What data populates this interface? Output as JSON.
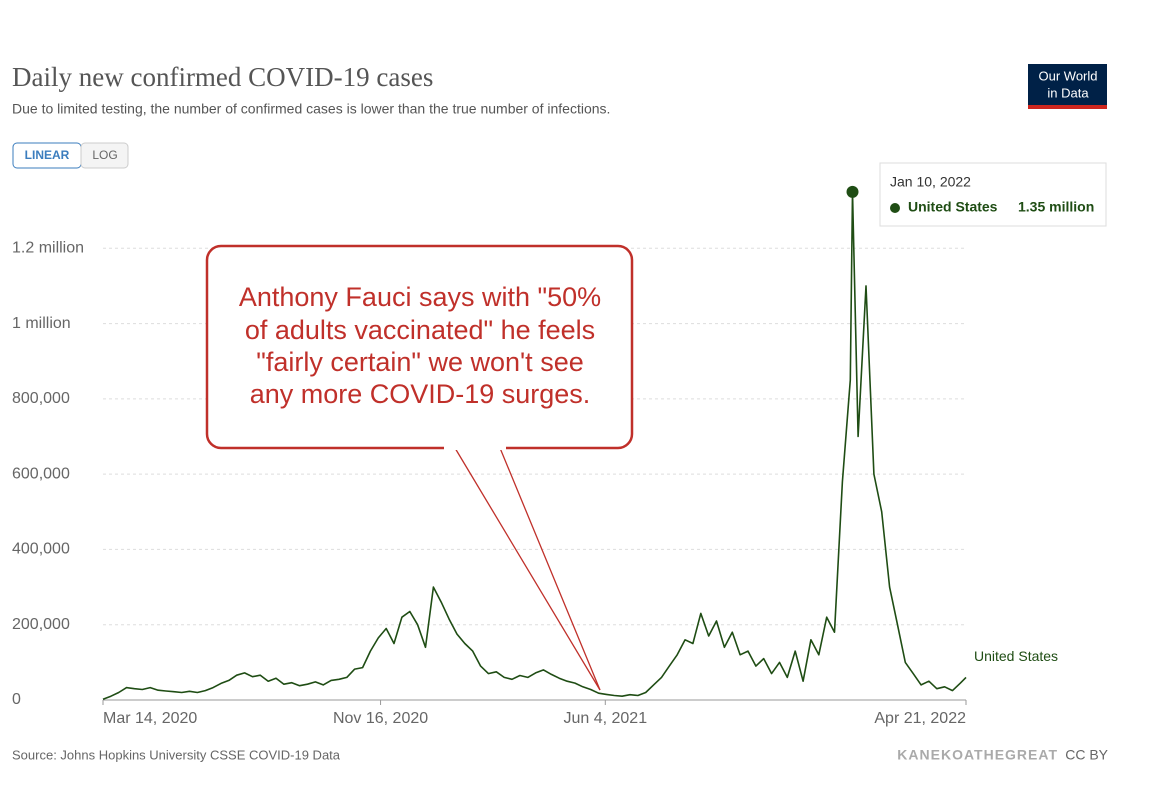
{
  "chart_data": {
    "type": "line",
    "title": "Daily new confirmed COVID-19 cases",
    "subtitle": "Due to limited testing, the number of confirmed cases is lower than the true number of infections.",
    "scale_buttons": [
      "LINEAR",
      "LOG"
    ],
    "log_scale": false,
    "logo": [
      "Our World",
      "in Data"
    ],
    "source": "Source: Johns Hopkins University CSSE COVID-19 Data",
    "watermark": "KANEKOATHEGREAT",
    "license": "CC BY",
    "annotation": [
      "Anthony Fauci says with \"50%",
      "of adults vaccinated\" he feels",
      "\"fairly certain\" we won't see",
      "any more COVID-19 surges."
    ],
    "tooltip": {
      "date": "Jan 10, 2022",
      "series": "United States",
      "value": 1350000,
      "value_label": "1.35 million"
    },
    "grid": true,
    "xlim": [
      "2020-03-14",
      "2022-04-21"
    ],
    "xticks": [
      {
        "value": "2020-03-14",
        "label": "Mar 14, 2020"
      },
      {
        "value": "2020-11-16",
        "label": "Nov 16, 2020"
      },
      {
        "value": "2021-06-04",
        "label": "Jun 4, 2021"
      },
      {
        "value": "2022-04-21",
        "label": "Apr 21, 2022"
      }
    ],
    "ylim": [
      0,
      1400000
    ],
    "yticks": [
      0,
      {
        "value": 200000,
        "label": "200,000"
      },
      {
        "value": 400000,
        "label": "400,000"
      },
      {
        "value": 600000,
        "label": "600,000"
      },
      {
        "value": 800000,
        "label": "800,000"
      },
      {
        "value": 1000000,
        "label": "1 million"
      },
      {
        "value": 1200000,
        "label": "1.2 million"
      }
    ],
    "x": [
      "2020-03-14",
      "2020-03-21",
      "2020-03-28",
      "2020-04-04",
      "2020-04-11",
      "2020-04-18",
      "2020-04-25",
      "2020-05-02",
      "2020-05-09",
      "2020-05-16",
      "2020-05-23",
      "2020-05-30",
      "2020-06-06",
      "2020-06-13",
      "2020-06-20",
      "2020-06-27",
      "2020-07-04",
      "2020-07-11",
      "2020-07-18",
      "2020-07-25",
      "2020-08-01",
      "2020-08-08",
      "2020-08-15",
      "2020-08-22",
      "2020-08-29",
      "2020-09-05",
      "2020-09-12",
      "2020-09-19",
      "2020-09-26",
      "2020-10-03",
      "2020-10-10",
      "2020-10-17",
      "2020-10-24",
      "2020-10-31",
      "2020-11-07",
      "2020-11-14",
      "2020-11-21",
      "2020-11-28",
      "2020-12-05",
      "2020-12-12",
      "2020-12-19",
      "2020-12-26",
      "2021-01-02",
      "2021-01-09",
      "2021-01-16",
      "2021-01-23",
      "2021-01-30",
      "2021-02-06",
      "2021-02-13",
      "2021-02-20",
      "2021-02-27",
      "2021-03-06",
      "2021-03-13",
      "2021-03-20",
      "2021-03-27",
      "2021-04-03",
      "2021-04-10",
      "2021-04-17",
      "2021-04-24",
      "2021-05-01",
      "2021-05-08",
      "2021-05-15",
      "2021-05-22",
      "2021-05-29",
      "2021-06-05",
      "2021-06-12",
      "2021-06-19",
      "2021-06-26",
      "2021-07-03",
      "2021-07-10",
      "2021-07-17",
      "2021-07-24",
      "2021-07-31",
      "2021-08-07",
      "2021-08-14",
      "2021-08-21",
      "2021-08-28",
      "2021-09-04",
      "2021-09-11",
      "2021-09-18",
      "2021-09-25",
      "2021-10-02",
      "2021-10-09",
      "2021-10-16",
      "2021-10-23",
      "2021-10-30",
      "2021-11-06",
      "2021-11-13",
      "2021-11-20",
      "2021-11-27",
      "2021-12-04",
      "2021-12-11",
      "2021-12-18",
      "2021-12-25",
      "2022-01-01",
      "2022-01-08",
      "2022-01-10",
      "2022-01-15",
      "2022-01-22",
      "2022-01-29",
      "2022-02-05",
      "2022-02-12",
      "2022-02-19",
      "2022-02-26",
      "2022-03-05",
      "2022-03-12",
      "2022-03-19",
      "2022-03-26",
      "2022-04-02",
      "2022-04-09",
      "2022-04-16",
      "2022-04-21"
    ],
    "series": [
      {
        "name": "United States",
        "color": "#1f4d14",
        "values": [
          2000,
          10000,
          20000,
          33000,
          30000,
          28000,
          33000,
          26000,
          24000,
          22000,
          20000,
          23000,
          20000,
          25000,
          33000,
          44000,
          52000,
          66000,
          72000,
          62000,
          66000,
          50000,
          58000,
          42000,
          46000,
          38000,
          42000,
          48000,
          40000,
          52000,
          55000,
          60000,
          82000,
          86000,
          130000,
          165000,
          190000,
          150000,
          220000,
          235000,
          200000,
          140000,
          300000,
          260000,
          215000,
          175000,
          150000,
          130000,
          90000,
          70000,
          75000,
          60000,
          55000,
          65000,
          60000,
          72000,
          80000,
          68000,
          58000,
          50000,
          45000,
          35000,
          28000,
          18000,
          15000,
          12000,
          10000,
          14000,
          12000,
          20000,
          40000,
          60000,
          90000,
          120000,
          160000,
          150000,
          230000,
          170000,
          210000,
          140000,
          180000,
          120000,
          130000,
          90000,
          110000,
          70000,
          100000,
          60000,
          130000,
          50000,
          160000,
          120000,
          220000,
          180000,
          580000,
          850000,
          1350000,
          700000,
          1100000,
          600000,
          500000,
          300000,
          200000,
          100000,
          70000,
          40000,
          50000,
          30000,
          35000,
          25000,
          45000,
          60000
        ]
      }
    ]
  }
}
